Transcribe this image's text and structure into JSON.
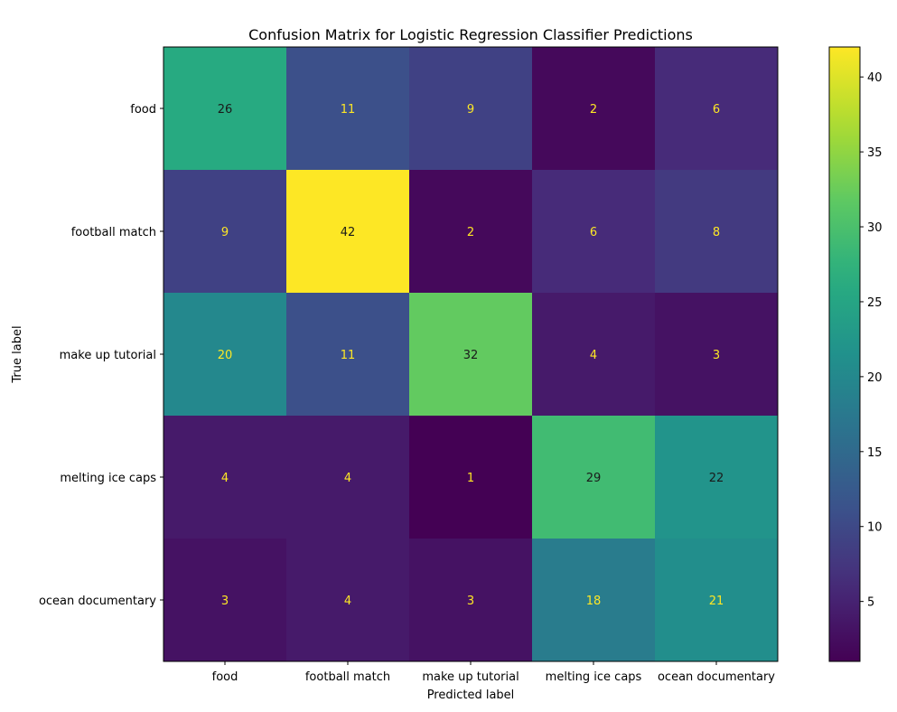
{
  "chart_data": {
    "type": "heatmap",
    "title": "Confusion Matrix for Logistic Regression Classifier Predictions",
    "xlabel": "Predicted label",
    "ylabel": "True label",
    "x_categories": [
      "food",
      "football match",
      "make up tutorial",
      "melting ice caps",
      "ocean documentary"
    ],
    "y_categories": [
      "food",
      "football match",
      "make up tutorial",
      "melting ice caps",
      "ocean documentary"
    ],
    "matrix": [
      [
        26,
        11,
        9,
        2,
        6
      ],
      [
        9,
        42,
        2,
        6,
        8
      ],
      [
        20,
        11,
        32,
        4,
        3
      ],
      [
        4,
        4,
        1,
        29,
        22
      ],
      [
        3,
        4,
        3,
        18,
        21
      ]
    ],
    "colormap": "viridis",
    "color_range": [
      1,
      42
    ],
    "colorbar_ticks": [
      5,
      10,
      15,
      20,
      25,
      30,
      35,
      40
    ],
    "text_colors": {
      "dark_cell": "#fde725",
      "light_cell": "#1a1a1a"
    }
  }
}
